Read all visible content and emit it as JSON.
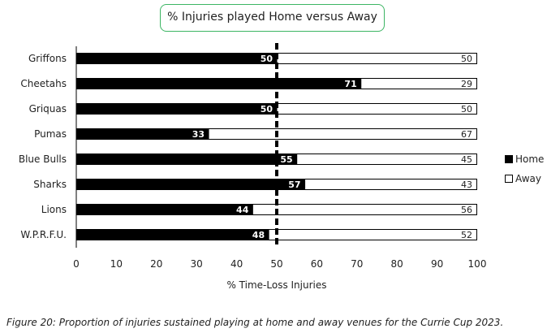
{
  "chart_data": {
    "type": "bar",
    "stacked": true,
    "orientation": "horizontal",
    "title": "% Injuries played Home versus Away",
    "categories": [
      "Griffons",
      "Cheetahs",
      "Griquas",
      "Pumas",
      "Blue Bulls",
      "Sharks",
      "Lions",
      "W.P.R.F.U."
    ],
    "series": [
      {
        "name": "Home",
        "color": "#000000",
        "values": [
          50,
          71,
          50,
          33,
          55,
          57,
          44,
          48
        ]
      },
      {
        "name": "Away",
        "color": "#ffffff",
        "values": [
          50,
          29,
          50,
          67,
          45,
          43,
          56,
          52
        ]
      }
    ],
    "xlabel": "% Time-Loss Injuries",
    "ylabel": "",
    "xlim": [
      0,
      100
    ],
    "xticks": [
      0,
      10,
      20,
      30,
      40,
      50,
      60,
      70,
      80,
      90,
      100
    ],
    "reference_line": 50,
    "legend": "right",
    "grid": false
  },
  "caption": "Figure 20: Proportion of injuries sustained playing at home and away venues for the Currie Cup 2023."
}
